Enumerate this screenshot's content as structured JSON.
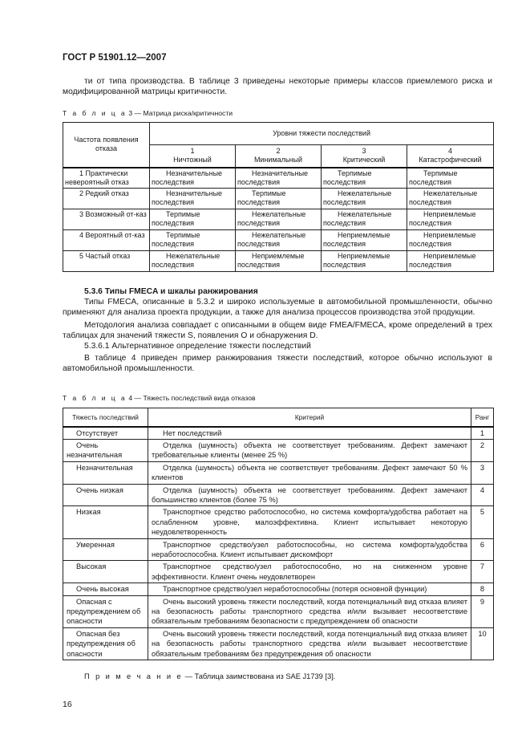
{
  "header": "ГОСТ Р 51901.12—2007",
  "intro": "ти от типа производства. В таблице 3 приведены некоторые примеры классов приемлемого риска и модифицированной матрицы критичности.",
  "table3": {
    "caption_label": "Т а б л и ц а",
    "caption_text": "3 — Матрица риска/критичности",
    "row_header": "Частота появления отказа",
    "group_header": "Уровни тяжести последствий",
    "columns": [
      {
        "num": "1",
        "label": "Ничтожный"
      },
      {
        "num": "2",
        "label": "Минимальный"
      },
      {
        "num": "3",
        "label": "Критический"
      },
      {
        "num": "4",
        "label": "Катастрофический"
      }
    ],
    "rows": [
      {
        "freq": "1 Практически невероятный отказ",
        "cells": [
          "Незначительные последствия",
          "Незначительные последствия",
          "Терпимые последствия",
          "Терпимые последствия"
        ]
      },
      {
        "freq": "2 Редкий отказ",
        "cells": [
          "Незначительные последствия",
          "Терпимые последствия",
          "Нежелательные последствия",
          "Нежелательные последствия"
        ]
      },
      {
        "freq": "3 Возможный от-каз",
        "cells": [
          "Терпимые последствия",
          "Нежелательные последствия",
          "Нежелательные последствия",
          "Неприемлемые последствия"
        ]
      },
      {
        "freq": "4 Вероятный от-каз",
        "cells": [
          "Терпимые последствия",
          "Нежелательные последствия",
          "Неприемлемые последствия",
          "Неприемлемые последствия"
        ]
      },
      {
        "freq": "5 Частый отказ",
        "cells": [
          "Нежелательные последствия",
          "Неприемлемые последствия",
          "Неприемлемые последствия",
          "Неприемлемые последствия"
        ]
      }
    ]
  },
  "section": {
    "heading": "5.3.6 Типы FMECA и шкалы ранжирования",
    "p1": "Типы FMECA, описанные в 5.3.2 и широко используемые в автомобильной промышленности, обычно применяют для анализа проекта продукции, а также для анализа процессов производства этой продукции.",
    "p2": "Методология анализа совпадает с описанными в общем виде FMEA/FMECA, кроме определений в трех таблицах для значений тяжести S, появления O и обнаружения D.",
    "sub": "5.3.6.1 Альтернативное определение тяжести последствий",
    "p3": "В таблице 4 приведен пример ранжирования тяжести последствий, которое обычно используют в автомобильной промышленности."
  },
  "table4": {
    "caption_label": "Т а б л и ц а",
    "caption_text": "4 — Тяжесть последствий вида отказов",
    "headers": [
      "Тяжесть последствий",
      "Критерий",
      "Ранг"
    ],
    "rows": [
      {
        "sev": "Отсутствует",
        "crit": "Нет последствий",
        "rank": "1"
      },
      {
        "sev": "Очень незначительная",
        "crit": "Отделка (шумность) объекта не соответствует требованиям. Дефект замечают требовательные клиенты (менее 25 %)",
        "rank": "2"
      },
      {
        "sev": "Незначительная",
        "crit": "Отделка (шумность) объекта не соответствует требованиям. Дефект замечают 50 % клиентов",
        "rank": "3"
      },
      {
        "sev": "Очень низкая",
        "crit": "Отделка (шумность) объекта не соответствует требованиям. Дефект замечают большинство клиентов (более 75 %)",
        "rank": "4"
      },
      {
        "sev": "Низкая",
        "crit": "Транспортное средство работоспособно, но система комфорта/удобства работает на ослабленном уровне, малоэффективна. Клиент испытывает некоторую неудовлетворенность",
        "rank": "5"
      },
      {
        "sev": "Умеренная",
        "crit": "Транспортное средство/узел работоспособны, но система комфорта/удобства неработоспособна. Клиент испытывает дискомфорт",
        "rank": "6"
      },
      {
        "sev": "Высокая",
        "crit": "Транспортное средство/узел работоспособно, но на сниженном уровне эффективности. Клиент очень неудовлетворен",
        "rank": "7"
      },
      {
        "sev": "Очень высокая",
        "crit": "Транспортное средство/узел неработоспособны (потеря основной функции)",
        "rank": "8"
      },
      {
        "sev": "Опасная с предупреждением об опасности",
        "crit": "Очень высокий уровень тяжести последствий, когда потенциальный вид отказа влияет на безопасность работы транспортного средства и/или вызывает несоответствие обязательным требованиям безопасности с предупреждением об опасности",
        "rank": "9"
      },
      {
        "sev": "Опасная без предупреждения об опасности",
        "crit": "Очень высокий уровень тяжести последствий, когда потенциальный вид отказа влияет на безопасность работы транспортного средства и/или вызывает несоответствие обязательным требованиям без предупреждения об опасности",
        "rank": "10"
      }
    ]
  },
  "note": {
    "label": "П р и м е ч а н и е",
    "text": "— Таблица заимствована из SAE J1739 [3]."
  },
  "page_number": "16"
}
